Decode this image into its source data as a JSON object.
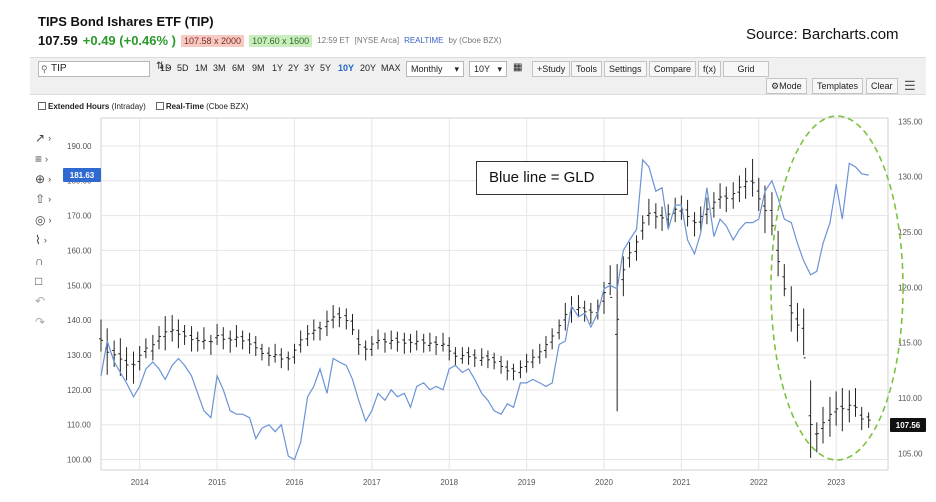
{
  "quote": {
    "title": "TIPS Bond Ishares ETF (TIP)",
    "last": "107.59",
    "change": "+0.49 (+0.46% )",
    "bid": "107.58 x 2000",
    "ask": "107.60 x 1600",
    "time": "12:59 ET",
    "exchange": "[NYSE Arca]",
    "realtime": "REALTIME",
    "realtime_source": "by (Cboe BZX)"
  },
  "source_label": "Source: Barcharts.com",
  "toolbar": {
    "symbol": "TIP",
    "timeframes": [
      "1D",
      "5D",
      "1M",
      "3M",
      "6M",
      "9M",
      "1Y",
      "2Y",
      "3Y",
      "5Y",
      "10Y",
      "20Y",
      "MAX"
    ],
    "active_timeframe": "10Y",
    "interval": "Monthly",
    "range": "10Y",
    "buttons": [
      "+Study",
      "Tools",
      "Settings",
      "Compare",
      "f(x)",
      "Grid"
    ],
    "mode": "Mode",
    "templates": "Templates",
    "clear": "Clear"
  },
  "options": {
    "extended_hours": "Extended Hours",
    "extended_hours_note": "(Intraday)",
    "real_time": "Real-Time",
    "real_time_note": "(Cboe BZX)"
  },
  "left_tools": [
    "line-tool-icon",
    "fib-tool-icon",
    "crosshair-icon",
    "arrow-up-icon",
    "target-icon",
    "pattern-tool-icon",
    "magnet-icon",
    "lock-icon",
    "undo-icon",
    "redo-icon"
  ],
  "annotation": "Blue line = GLD",
  "colors": {
    "gld_line": "#6b93d6",
    "price_bar": "#222222",
    "highlight": "#7cc242",
    "price_tag_left": "#2f6ad0",
    "price_tag_right": "#111111"
  },
  "chart_data": {
    "type": "line",
    "x_ticks": [
      "2014",
      "2015",
      "2016",
      "2017",
      "2018",
      "2019",
      "2020",
      "2021",
      "2022",
      "2023"
    ],
    "x_range": [
      2013.5,
      2023.67
    ],
    "left_axis": {
      "ticks": [
        "100.00",
        "110.00",
        "120.00",
        "130.00",
        "140.00",
        "150.00",
        "160.00",
        "170.00",
        "180.00",
        "190.00"
      ],
      "range": [
        97,
        198
      ],
      "current": "181.63"
    },
    "right_axis": {
      "ticks": [
        "105.00",
        "110.00",
        "115.00",
        "120.00",
        "125.00",
        "130.00",
        "135.00"
      ],
      "range": [
        103.5,
        135.3
      ],
      "current": "107.56"
    },
    "grid": true,
    "series": [
      {
        "axis": "left",
        "style": "line",
        "points": [
          [
            2013.5,
            124
          ],
          [
            2013.58,
            134
          ],
          [
            2013.67,
            128
          ],
          [
            2013.75,
            125
          ],
          [
            2013.83,
            122
          ],
          [
            2013.92,
            118
          ],
          [
            2014.0,
            121
          ],
          [
            2014.08,
            126
          ],
          [
            2014.17,
            128
          ],
          [
            2014.25,
            126
          ],
          [
            2014.33,
            123
          ],
          [
            2014.42,
            127
          ],
          [
            2014.5,
            129
          ],
          [
            2014.58,
            127
          ],
          [
            2014.67,
            124
          ],
          [
            2014.75,
            119
          ],
          [
            2014.83,
            114
          ],
          [
            2014.92,
            112
          ],
          [
            2015.0,
            124
          ],
          [
            2015.08,
            120
          ],
          [
            2015.17,
            114
          ],
          [
            2015.25,
            113
          ],
          [
            2015.33,
            113
          ],
          [
            2015.42,
            112
          ],
          [
            2015.5,
            106
          ],
          [
            2015.58,
            109
          ],
          [
            2015.67,
            110
          ],
          [
            2015.75,
            108
          ],
          [
            2015.83,
            110
          ],
          [
            2015.92,
            101
          ],
          [
            2016.0,
            100
          ],
          [
            2016.08,
            105
          ],
          [
            2016.17,
            118
          ],
          [
            2016.25,
            121
          ],
          [
            2016.33,
            126
          ],
          [
            2016.42,
            119
          ],
          [
            2016.5,
            129
          ],
          [
            2016.58,
            128
          ],
          [
            2016.67,
            127
          ],
          [
            2016.75,
            123
          ],
          [
            2016.83,
            117
          ],
          [
            2016.92,
            111
          ],
          [
            2017.0,
            114
          ],
          [
            2017.08,
            119
          ],
          [
            2017.17,
            117
          ],
          [
            2017.25,
            120
          ],
          [
            2017.33,
            118
          ],
          [
            2017.42,
            119
          ],
          [
            2017.5,
            115
          ],
          [
            2017.58,
            121
          ],
          [
            2017.67,
            122
          ],
          [
            2017.75,
            120
          ],
          [
            2017.83,
            121
          ],
          [
            2017.92,
            120
          ],
          [
            2018.0,
            126
          ],
          [
            2018.08,
            127
          ],
          [
            2018.17,
            125
          ],
          [
            2018.25,
            126
          ],
          [
            2018.33,
            123
          ],
          [
            2018.42,
            119
          ],
          [
            2018.5,
            117
          ],
          [
            2018.58,
            114
          ],
          [
            2018.67,
            113
          ],
          [
            2018.75,
            116
          ],
          [
            2018.83,
            115
          ],
          [
            2018.92,
            122
          ],
          [
            2019.0,
            122
          ],
          [
            2019.08,
            123
          ],
          [
            2019.17,
            122
          ],
          [
            2019.25,
            121
          ],
          [
            2019.33,
            122
          ],
          [
            2019.42,
            133
          ],
          [
            2019.5,
            134
          ],
          [
            2019.58,
            144
          ],
          [
            2019.67,
            141
          ],
          [
            2019.75,
            142
          ],
          [
            2019.83,
            138
          ],
          [
            2019.92,
            142
          ],
          [
            2020.0,
            149
          ],
          [
            2020.08,
            150
          ],
          [
            2020.17,
            149
          ],
          [
            2020.25,
            160
          ],
          [
            2020.33,
            163
          ],
          [
            2020.42,
            166
          ],
          [
            2020.5,
            186
          ],
          [
            2020.58,
            184
          ],
          [
            2020.67,
            177
          ],
          [
            2020.75,
            178
          ],
          [
            2020.83,
            166
          ],
          [
            2020.92,
            173
          ],
          [
            2021.0,
            173
          ],
          [
            2021.08,
            163
          ],
          [
            2021.17,
            159
          ],
          [
            2021.25,
            165
          ],
          [
            2021.33,
            178
          ],
          [
            2021.42,
            164
          ],
          [
            2021.5,
            169
          ],
          [
            2021.58,
            167
          ],
          [
            2021.67,
            163
          ],
          [
            2021.75,
            166
          ],
          [
            2021.83,
            168
          ],
          [
            2021.92,
            168
          ],
          [
            2022.0,
            169
          ],
          [
            2022.08,
            177
          ],
          [
            2022.17,
            180
          ],
          [
            2022.25,
            175
          ],
          [
            2022.33,
            169
          ],
          [
            2022.42,
            168
          ],
          [
            2022.5,
            162
          ],
          [
            2022.58,
            157
          ],
          [
            2022.67,
            153
          ],
          [
            2022.75,
            154
          ],
          [
            2022.83,
            162
          ],
          [
            2022.92,
            168
          ],
          [
            2023.0,
            179
          ],
          [
            2023.08,
            169
          ],
          [
            2023.17,
            185
          ],
          [
            2023.25,
            184
          ],
          [
            2023.33,
            182
          ],
          [
            2023.42,
            181.63
          ]
        ]
      },
      {
        "axis": "right",
        "style": "ohlc",
        "bars": [
          [
            2013.5,
            117.1,
            114.2
          ],
          [
            2013.58,
            116.3,
            112.1
          ],
          [
            2013.67,
            115.2,
            112.8
          ],
          [
            2013.75,
            115.4,
            112.0
          ],
          [
            2013.83,
            114.6,
            111.6
          ],
          [
            2013.92,
            114.2,
            111.3
          ],
          [
            2014.0,
            114.7,
            112.5
          ],
          [
            2014.08,
            115.4,
            113.6
          ],
          [
            2014.17,
            115.7,
            113.4
          ],
          [
            2014.25,
            116.5,
            114.4
          ],
          [
            2014.33,
            117.4,
            114.3
          ],
          [
            2014.42,
            117.5,
            115.1
          ],
          [
            2014.5,
            117.1,
            114.5
          ],
          [
            2014.58,
            116.6,
            114.8
          ],
          [
            2014.67,
            116.5,
            114.2
          ],
          [
            2014.75,
            116.0,
            114.2
          ],
          [
            2014.83,
            116.4,
            114.4
          ],
          [
            2014.92,
            115.7,
            113.9
          ],
          [
            2015.0,
            116.7,
            114.8
          ],
          [
            2015.08,
            116.4,
            114.4
          ],
          [
            2015.17,
            116.1,
            114.1
          ],
          [
            2015.25,
            116.6,
            114.6
          ],
          [
            2015.33,
            116.1,
            114.4
          ],
          [
            2015.42,
            115.9,
            114.0
          ],
          [
            2015.5,
            115.6,
            113.8
          ],
          [
            2015.58,
            114.9,
            113.4
          ],
          [
            2015.67,
            114.6,
            112.9
          ],
          [
            2015.75,
            114.9,
            113.2
          ],
          [
            2015.83,
            114.5,
            112.7
          ],
          [
            2015.92,
            114.2,
            112.5
          ],
          [
            2016.0,
            114.9,
            113.1
          ],
          [
            2016.08,
            116.1,
            114.1
          ],
          [
            2016.17,
            116.6,
            114.7
          ],
          [
            2016.25,
            117.1,
            115.2
          ],
          [
            2016.33,
            116.9,
            115.2
          ],
          [
            2016.42,
            117.9,
            115.6
          ],
          [
            2016.5,
            118.4,
            116.3
          ],
          [
            2016.58,
            118.2,
            116.4
          ],
          [
            2016.67,
            118.1,
            116.2
          ],
          [
            2016.75,
            117.6,
            115.7
          ],
          [
            2016.83,
            116.2,
            113.9
          ],
          [
            2016.92,
            115.2,
            113.4
          ],
          [
            2017.0,
            115.6,
            113.8
          ],
          [
            2017.08,
            116.2,
            114.4
          ],
          [
            2017.17,
            115.9,
            114.1
          ],
          [
            2017.25,
            116.1,
            114.4
          ],
          [
            2017.33,
            116.0,
            114.2
          ],
          [
            2017.42,
            115.9,
            114.0
          ],
          [
            2017.5,
            115.8,
            114.1
          ],
          [
            2017.58,
            116.1,
            114.3
          ],
          [
            2017.67,
            115.8,
            114.1
          ],
          [
            2017.75,
            115.9,
            114.2
          ],
          [
            2017.83,
            115.6,
            113.9
          ],
          [
            2017.92,
            115.9,
            114.2
          ],
          [
            2018.0,
            115.5,
            113.4
          ],
          [
            2018.08,
            114.6,
            112.9
          ],
          [
            2018.17,
            114.6,
            113.1
          ],
          [
            2018.25,
            114.6,
            113.0
          ],
          [
            2018.33,
            114.4,
            112.8
          ],
          [
            2018.42,
            114.5,
            112.9
          ],
          [
            2018.5,
            114.3,
            112.7
          ],
          [
            2018.58,
            114.1,
            112.6
          ],
          [
            2018.67,
            113.8,
            112.2
          ],
          [
            2018.75,
            113.4,
            111.6
          ],
          [
            2018.83,
            113.1,
            111.6
          ],
          [
            2018.92,
            113.4,
            111.8
          ],
          [
            2019.0,
            114.0,
            112.3
          ],
          [
            2019.08,
            114.4,
            112.7
          ],
          [
            2019.17,
            114.9,
            113.1
          ],
          [
            2019.25,
            115.6,
            113.6
          ],
          [
            2019.33,
            116.3,
            114.4
          ],
          [
            2019.42,
            117.1,
            115.3
          ],
          [
            2019.5,
            118.6,
            116.1
          ],
          [
            2019.58,
            119.2,
            116.8
          ],
          [
            2019.67,
            119.3,
            117.3
          ],
          [
            2019.75,
            118.8,
            116.9
          ],
          [
            2019.83,
            118.6,
            116.7
          ],
          [
            2019.92,
            118.9,
            117.1
          ],
          [
            2020.0,
            120.5,
            117.6
          ],
          [
            2020.08,
            122.0,
            119.3
          ],
          [
            2020.17,
            122.1,
            108.8
          ],
          [
            2020.25,
            122.8,
            119.2
          ],
          [
            2020.33,
            124.1,
            121.8
          ],
          [
            2020.42,
            124.7,
            122.4
          ],
          [
            2020.5,
            126.5,
            124.3
          ],
          [
            2020.58,
            128.0,
            125.6
          ],
          [
            2020.67,
            127.6,
            125.3
          ],
          [
            2020.75,
            127.3,
            125.1
          ],
          [
            2020.83,
            127.5,
            125.4
          ],
          [
            2020.92,
            128.1,
            125.9
          ],
          [
            2021.0,
            128.3,
            126.1
          ],
          [
            2021.08,
            127.9,
            125.5
          ],
          [
            2021.17,
            126.8,
            124.6
          ],
          [
            2021.25,
            127.3,
            125.1
          ],
          [
            2021.33,
            128.1,
            125.7
          ],
          [
            2021.42,
            128.6,
            126.3
          ],
          [
            2021.5,
            129.4,
            127.1
          ],
          [
            2021.58,
            129.1,
            126.8
          ],
          [
            2021.67,
            129.5,
            127.1
          ],
          [
            2021.75,
            130.1,
            127.7
          ],
          [
            2021.83,
            130.8,
            128.0
          ],
          [
            2021.92,
            131.6,
            128.2
          ],
          [
            2022.0,
            129.9,
            126.9
          ],
          [
            2022.08,
            129.2,
            124.9
          ],
          [
            2022.17,
            128.6,
            124.7
          ],
          [
            2022.25,
            125.1,
            121.0
          ],
          [
            2022.33,
            122.1,
            119.2
          ],
          [
            2022.42,
            120.1,
            116.0
          ],
          [
            2022.5,
            118.6,
            115.1
          ],
          [
            2022.58,
            118.1,
            113.9
          ],
          [
            2022.67,
            111.6,
            104.6
          ],
          [
            2022.75,
            107.8,
            105.1
          ],
          [
            2022.83,
            109.2,
            105.9
          ],
          [
            2022.92,
            110.1,
            106.5
          ],
          [
            2023.0,
            110.6,
            107.5
          ],
          [
            2023.08,
            110.9,
            107.0
          ],
          [
            2023.17,
            110.7,
            107.8
          ],
          [
            2023.25,
            110.9,
            108.3
          ],
          [
            2023.33,
            109.2,
            107.1
          ],
          [
            2023.42,
            108.7,
            107.3
          ]
        ]
      }
    ]
  }
}
